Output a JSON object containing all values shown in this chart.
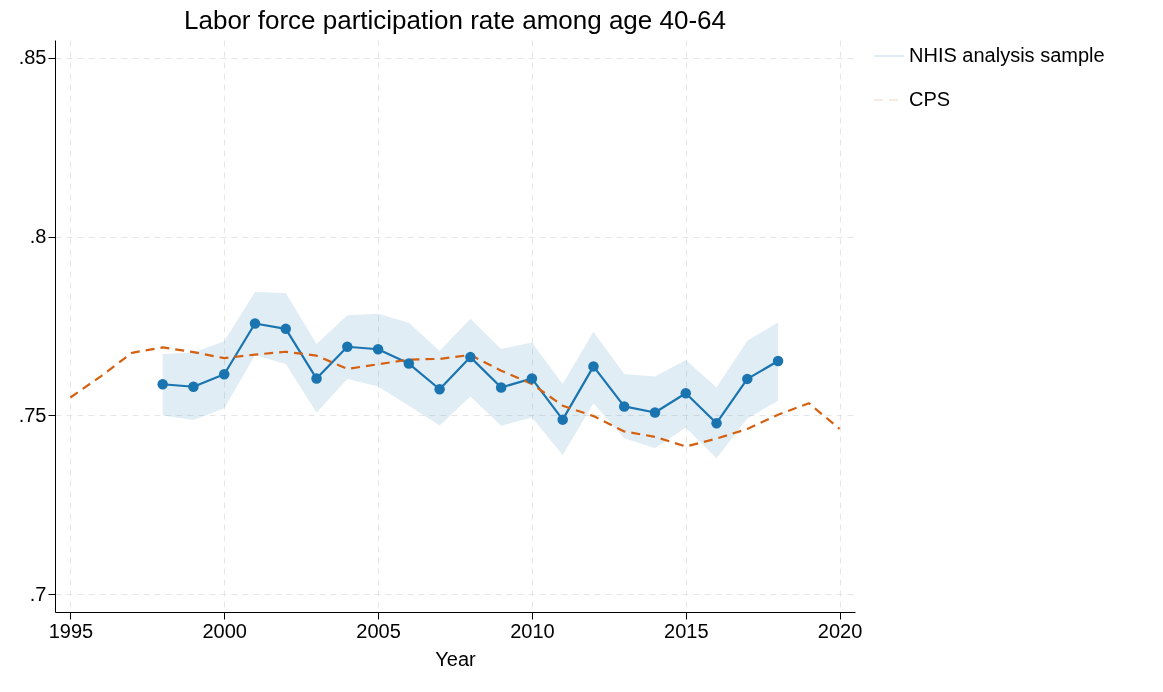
{
  "chart_data": {
    "type": "line",
    "title": "Labor force participation rate among age 40-64",
    "xlabel": "Year",
    "xlim": [
      1994.5,
      2020.5
    ],
    "xticks": [
      1995,
      2000,
      2005,
      2010,
      2015,
      2020
    ],
    "ylim": [
      0.695,
      0.855
    ],
    "yticks": [
      {
        "value": 0.7,
        "label": ".7"
      },
      {
        "value": 0.75,
        "label": ".75"
      },
      {
        "value": 0.8,
        "label": ".8"
      },
      {
        "value": 0.85,
        "label": ".85"
      }
    ],
    "grid": true,
    "legend": "right",
    "series": [
      {
        "name": "NHIS analysis sample",
        "color": "#1a74b0",
        "marker": "circle",
        "line_style": "solid",
        "x": [
          1998,
          1999,
          2000,
          2001,
          2002,
          2003,
          2004,
          2005,
          2006,
          2007,
          2008,
          2009,
          2010,
          2011,
          2012,
          2013,
          2014,
          2015,
          2016,
          2017,
          2018
        ],
        "values": [
          0.7587,
          0.758,
          0.7615,
          0.7757,
          0.7742,
          0.7603,
          0.7692,
          0.7685,
          0.7645,
          0.7573,
          0.7663,
          0.7578,
          0.7603,
          0.7488,
          0.7637,
          0.7525,
          0.7508,
          0.7562,
          0.7478,
          0.7602,
          0.7652
        ],
        "lower": [
          0.75,
          0.7487,
          0.752,
          0.7668,
          0.7644,
          0.7507,
          0.7602,
          0.7581,
          0.7527,
          0.7472,
          0.7553,
          0.7471,
          0.7494,
          0.7389,
          0.7534,
          0.7436,
          0.7408,
          0.7466,
          0.738,
          0.7491,
          0.7541
        ],
        "upper": [
          0.7672,
          0.7676,
          0.7707,
          0.7845,
          0.7842,
          0.77,
          0.778,
          0.7784,
          0.7759,
          0.768,
          0.777,
          0.7686,
          0.7704,
          0.7588,
          0.7734,
          0.7616,
          0.7609,
          0.7655,
          0.7578,
          0.7709,
          0.776
        ]
      },
      {
        "name": "CPS",
        "color": "#d5600f",
        "marker": "none",
        "line_style": "dashed",
        "x": [
          1995,
          1996,
          1997,
          1998,
          1999,
          2000,
          2001,
          2002,
          2003,
          2004,
          2005,
          2006,
          2007,
          2008,
          2009,
          2010,
          2011,
          2012,
          2013,
          2014,
          2015,
          2016,
          2017,
          2018,
          2019,
          2020
        ],
        "values": [
          0.755,
          0.761,
          0.7675,
          0.769,
          0.7677,
          0.766,
          0.767,
          0.7678,
          0.7667,
          0.763,
          0.7643,
          0.7656,
          0.7658,
          0.7669,
          0.7625,
          0.7588,
          0.7527,
          0.7498,
          0.7455,
          0.744,
          0.7413,
          0.7435,
          0.7462,
          0.7502,
          0.7534,
          0.7462
        ]
      }
    ]
  }
}
